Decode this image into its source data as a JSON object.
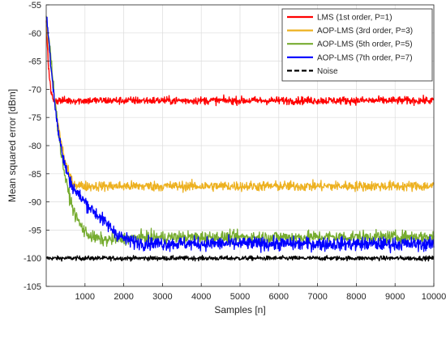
{
  "chart_data": {
    "type": "line",
    "title": "",
    "xlabel": "Samples [n]",
    "ylabel": "Mean squared error [dBm]",
    "xlim": [
      0,
      10000
    ],
    "ylim": [
      -105,
      -55
    ],
    "xticks": [
      1000,
      2000,
      3000,
      4000,
      5000,
      6000,
      7000,
      8000,
      9000,
      10000
    ],
    "yticks": [
      -105,
      -100,
      -95,
      -90,
      -85,
      -80,
      -75,
      -70,
      -65,
      -60,
      -55
    ],
    "grid": true,
    "legend_position": "top-right",
    "series": [
      {
        "name": "LMS (1st order, P=1)",
        "color": "#ff0000",
        "dash": "solid",
        "noise": 0.35,
        "x": [
          0,
          60,
          120,
          180,
          250,
          10000
        ],
        "y": [
          -58,
          -66,
          -70.5,
          -71.8,
          -72,
          -72
        ]
      },
      {
        "name": "AOP-LMS (3rd order, P=3)",
        "color": "#edb120",
        "dash": "solid",
        "noise": 0.45,
        "x": [
          0,
          100,
          200,
          300,
          400,
          500,
          600,
          700,
          800,
          1000,
          10000
        ],
        "y": [
          -58,
          -65,
          -71,
          -76,
          -80,
          -83,
          -85.5,
          -86.7,
          -87,
          -87.2,
          -87.2
        ]
      },
      {
        "name": "AOP-LMS (5th order, P=5)",
        "color": "#77ac30",
        "dash": "solid",
        "noise": 0.55,
        "x": [
          0,
          100,
          200,
          300,
          400,
          500,
          600,
          700,
          800,
          900,
          1000,
          1200,
          1500,
          2000,
          2500,
          10000
        ],
        "y": [
          -57,
          -63,
          -70,
          -77,
          -82,
          -86,
          -89,
          -91.5,
          -93,
          -94.3,
          -95.3,
          -96.3,
          -96.8,
          -96.5,
          -96.3,
          -96.2
        ]
      },
      {
        "name": "AOP-LMS (7th order, P=7)",
        "color": "#0000ff",
        "dash": "solid",
        "noise": 0.6,
        "x": [
          0,
          50,
          100,
          200,
          300,
          400,
          500,
          600,
          700,
          800,
          1000,
          1200,
          1500,
          1800,
          2000,
          2200,
          2500,
          3000,
          10000
        ],
        "y": [
          -56.5,
          -60,
          -64,
          -71,
          -77,
          -81,
          -84,
          -86,
          -87.5,
          -88.5,
          -90,
          -91.5,
          -93.5,
          -95.5,
          -96.5,
          -97,
          -97.3,
          -97.4,
          -97.5
        ]
      },
      {
        "name": "Noise",
        "color": "#000000",
        "dash": "dashed",
        "noise": 0.2,
        "x": [
          0,
          10000
        ],
        "y": [
          -100,
          -100
        ]
      }
    ]
  }
}
